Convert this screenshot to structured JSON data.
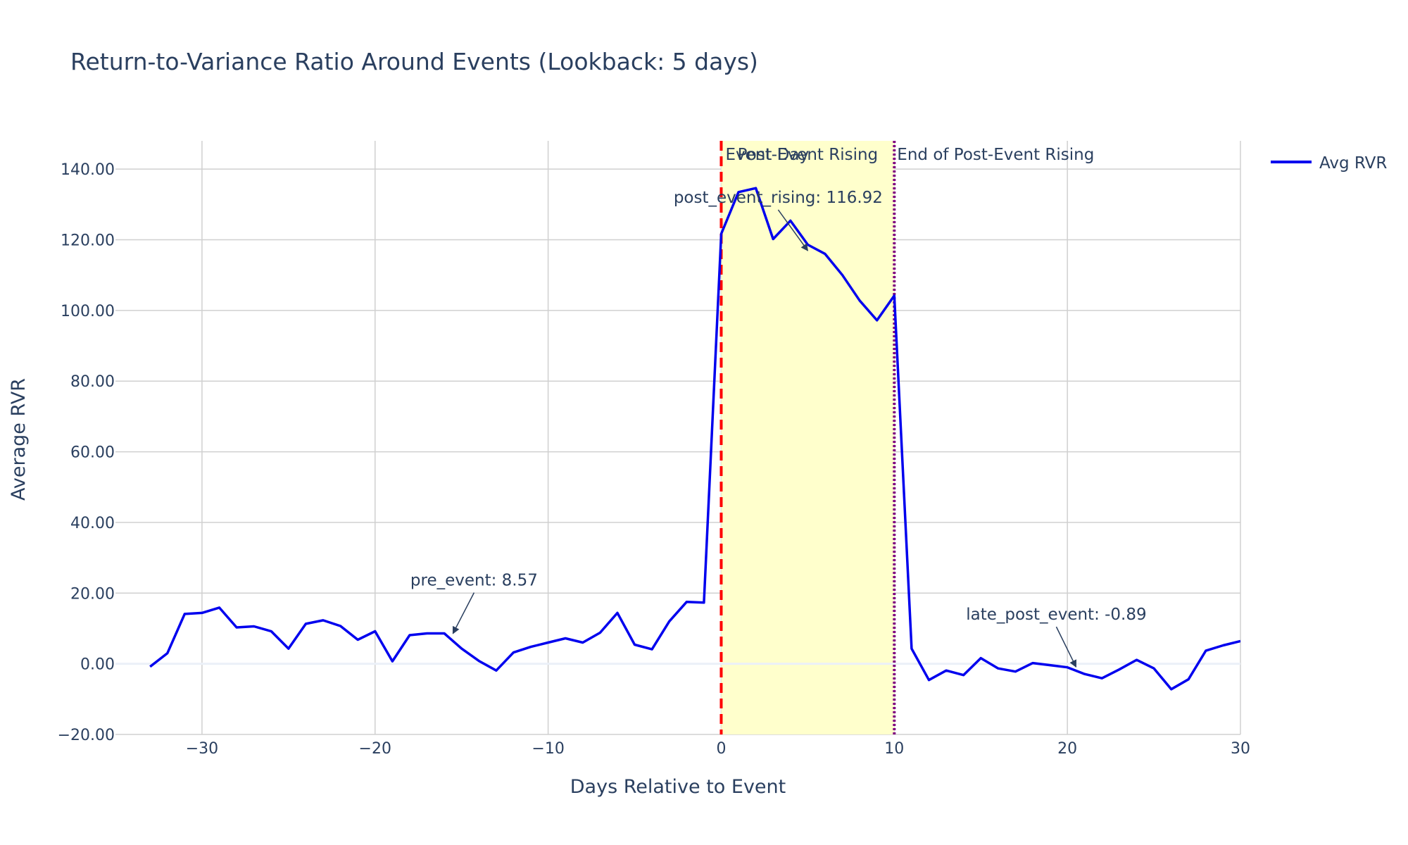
{
  "chart_data": {
    "type": "line",
    "title": "Return-to-Variance Ratio Around Events (Lookback: 5 days)",
    "xlabel": "Days Relative to Event",
    "ylabel": "Average RVR",
    "xlim": [
      -35,
      30
    ],
    "ylim": [
      -20,
      148
    ],
    "x_ticks": [
      -30,
      -20,
      -10,
      0,
      10,
      20,
      30
    ],
    "x_tick_labels": [
      "−30",
      "−20",
      "−10",
      "0",
      "10",
      "20",
      "30"
    ],
    "y_ticks": [
      -20,
      0,
      20,
      40,
      60,
      80,
      100,
      120,
      140
    ],
    "y_tick_labels": [
      "−20.00",
      "0.00",
      "20.00",
      "40.00",
      "60.00",
      "80.00",
      "100.00",
      "120.00",
      "140.00"
    ],
    "grid": true,
    "legend_position": "top-right",
    "series": [
      {
        "name": "Avg RVR",
        "color": "#0000ee",
        "x": [
          -33,
          -32,
          -31,
          -30,
          -29,
          -28,
          -27,
          -26,
          -25,
          -24,
          -23,
          -22,
          -21,
          -20,
          -19,
          -18,
          -17,
          -16,
          -15,
          -14,
          -13,
          -12,
          -11,
          -10,
          -9,
          -8,
          -7,
          -6,
          -5,
          -4,
          -3,
          -2,
          -1,
          0,
          1,
          2,
          3,
          4,
          5,
          6,
          7,
          8,
          9,
          10,
          11,
          12,
          13,
          14,
          15,
          16,
          17,
          18,
          19,
          20,
          21,
          22,
          23,
          24,
          25,
          26,
          27,
          28,
          29,
          30
        ],
        "y": [
          -0.8,
          3.0,
          14.1,
          14.4,
          15.9,
          10.3,
          10.6,
          9.2,
          4.3,
          11.3,
          12.3,
          10.7,
          6.8,
          9.2,
          0.7,
          8.1,
          8.6,
          8.6,
          4.3,
          0.8,
          -1.9,
          3.2,
          4.8,
          6.0,
          7.2,
          6.0,
          8.8,
          14.4,
          5.4,
          4.1,
          12.0,
          17.5,
          17.3,
          121.7,
          133.5,
          134.6,
          120.2,
          125.4,
          118.6,
          116.0,
          110.0,
          102.8,
          97.2,
          104.2,
          4.3,
          -4.6,
          -1.9,
          -3.2,
          1.6,
          -1.3,
          -2.2,
          0.2,
          -0.4,
          -1.0,
          -2.9,
          -4.1,
          -1.6,
          1.1,
          -1.3,
          -7.2,
          -4.4,
          3.7,
          5.2,
          6.4
        ]
      }
    ],
    "shaded_region": {
      "x0": 0,
      "x1": 10,
      "color": "#ffffcc"
    },
    "vertical_lines": [
      {
        "x": 0,
        "label": "Event Day",
        "color": "#ff0000",
        "style": "dashed"
      },
      {
        "x": 10,
        "label": "End of Post-Event Rising",
        "color": "#800080",
        "style": "dotted"
      }
    ],
    "region_label": "Post-Event Rising",
    "annotations": [
      {
        "text": "pre_event: 8.57",
        "x": -15.5,
        "y": 8.57
      },
      {
        "text": "post_event_rising: 116.92",
        "x": 5,
        "y": 116.92
      },
      {
        "text": "late_post_event: -0.89",
        "x": 20.5,
        "y": -0.89
      }
    ]
  }
}
